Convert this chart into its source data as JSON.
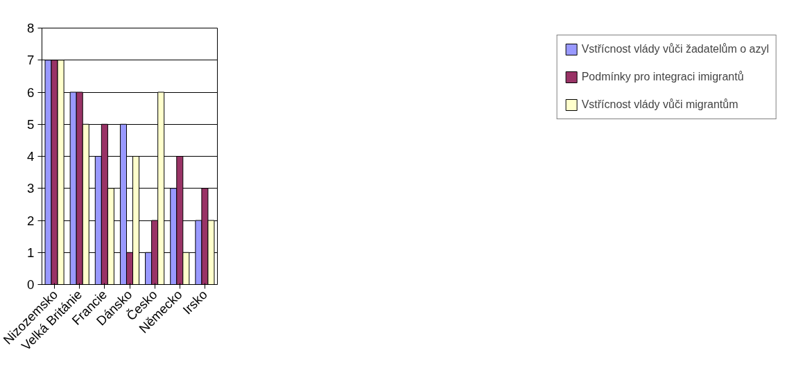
{
  "chart_data": {
    "type": "bar",
    "categories": [
      "Nizozemsko",
      "Velká Británie",
      "Francie",
      "Dánsko",
      "Česko",
      "Německo",
      "Irsko"
    ],
    "series": [
      {
        "name": "Vstřícnost vlády vůči žadatelům o azyl",
        "color": "#9999ff",
        "values": [
          7,
          6,
          4,
          5,
          1,
          3,
          2
        ]
      },
      {
        "name": "Podmínky pro integraci imigrantů",
        "color": "#993366",
        "values": [
          7,
          6,
          5,
          1,
          2,
          4,
          3
        ]
      },
      {
        "name": "Vstřícnost vlády vůči migrantům",
        "color": "#ffffcc",
        "values": [
          7,
          5,
          3,
          4,
          6,
          1,
          2
        ]
      }
    ],
    "ylim": [
      0,
      8
    ],
    "yticks": [
      0,
      1,
      2,
      3,
      4,
      5,
      6,
      7,
      8
    ],
    "grid": "y",
    "legend": "right"
  }
}
